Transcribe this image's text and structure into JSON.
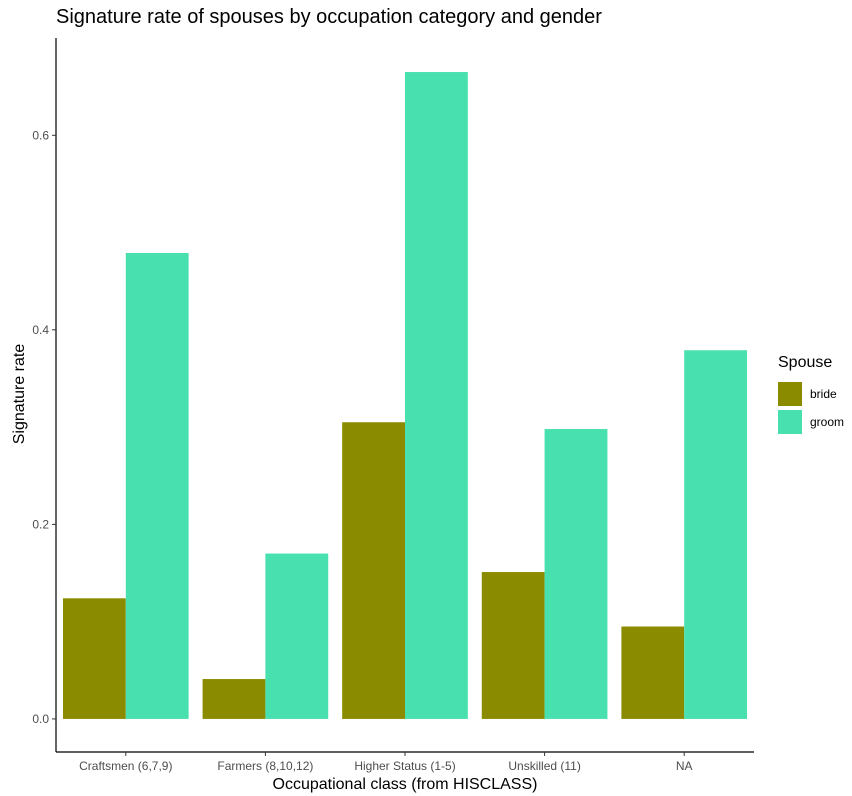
{
  "chart_data": {
    "type": "bar",
    "title": "Signature rate of spouses by occupation category and gender",
    "xlabel": "Occupational class (from HISCLASS)",
    "ylabel": "Signature rate",
    "categories": [
      "Craftsmen (6,7,9)",
      "Farmers (8,10,12)",
      "Higher Status (1-5)",
      "Unskilled (11)",
      "NA"
    ],
    "series": [
      {
        "name": "bride",
        "color": "#8b8b00",
        "values": [
          0.124,
          0.041,
          0.305,
          0.151,
          0.095
        ]
      },
      {
        "name": "groom",
        "color": "#48e0ae",
        "values": [
          0.479,
          0.17,
          0.665,
          0.298,
          0.379
        ]
      }
    ],
    "yticks": [
      0.0,
      0.2,
      0.4,
      0.6
    ],
    "ytick_labels": [
      "0.0",
      "0.2",
      "0.4",
      "0.6"
    ],
    "ylim": [
      -0.034,
      0.7
    ],
    "grid": false,
    "legend": {
      "title": "Spouse",
      "placement": "right"
    }
  }
}
